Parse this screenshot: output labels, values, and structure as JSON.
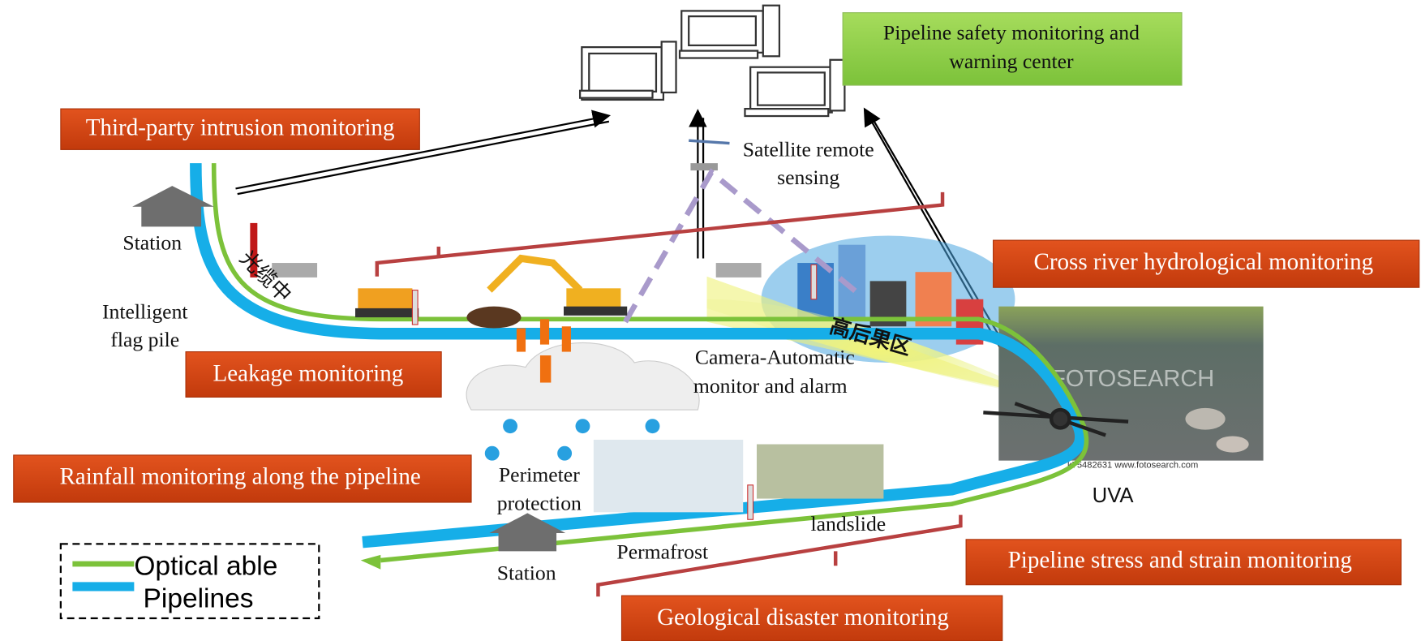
{
  "center": {
    "lines": [
      "Pipeline safety monitoring and",
      "warning center"
    ]
  },
  "monitors": [
    "Third-party intrusion monitoring",
    "Cross river hydrological monitoring",
    "Leakage  monitoring",
    "Rainfall monitoring along the pipeline",
    "Pipeline stress and strain monitoring",
    "Geological disaster monitoring"
  ],
  "places": {
    "station_top": "Station",
    "flag_pile": [
      "Intelligent",
      "flag pile"
    ],
    "satellite": [
      "Satellite  remote",
      "sensing"
    ],
    "camera": [
      "Camera-Automatic",
      "monitor and alarm"
    ],
    "perimeter": [
      "Perimeter",
      "protection"
    ],
    "permafrost": "Permafrost",
    "landslide": "landslide",
    "station_bottom": "Station",
    "uva": "UVA",
    "high_consequence": "高后果区",
    "cable_note": "光缆中",
    "watermark": "FOTOSEARCH",
    "photo_credit": "k75482631  www.fotosearch.com"
  },
  "legend": [
    "Optical able",
    "Pipelines"
  ]
}
